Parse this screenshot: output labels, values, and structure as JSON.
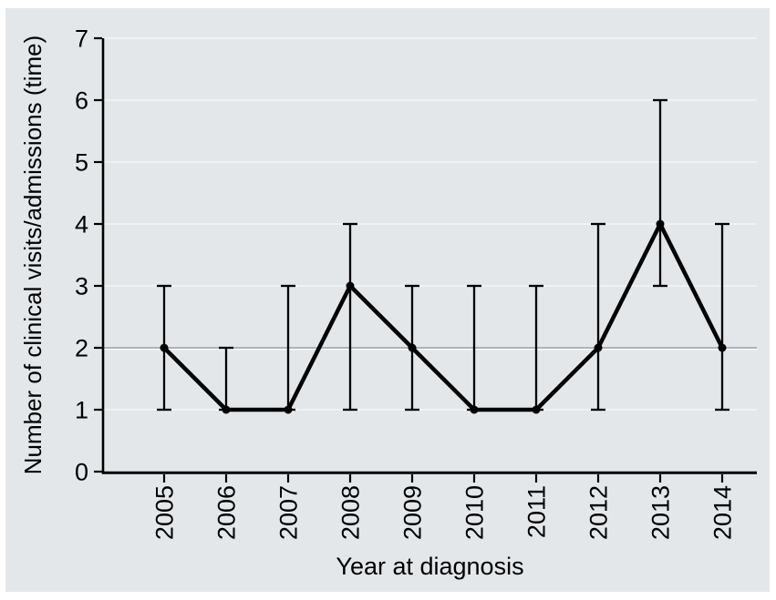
{
  "figure": {
    "description": "Line chart with error bars of clinical visits/admissions by year at diagnosis"
  },
  "chart_data": {
    "type": "line",
    "title": "",
    "xlabel": "Year at diagnosis",
    "ylabel": "Number of clinical visits/admissions (time)",
    "categories": [
      "2005",
      "2006",
      "2007",
      "2008",
      "2009",
      "2010",
      "2011",
      "2012",
      "2013",
      "2014"
    ],
    "series": [
      {
        "name": "Number of clinical visits/admissions",
        "values": [
          2,
          1,
          1,
          3,
          2,
          1,
          1,
          2,
          4,
          2
        ],
        "error_low": [
          1,
          1,
          1,
          1,
          1,
          1,
          1,
          1,
          3,
          1
        ],
        "error_high": [
          3,
          2,
          3,
          4,
          3,
          3,
          3,
          4,
          6,
          4
        ]
      }
    ],
    "ylim": [
      0,
      7
    ],
    "yticks": [
      0,
      1,
      2,
      3,
      4,
      5,
      6,
      7
    ],
    "grid": "horizontal",
    "emphasized_gridline": 2,
    "legend_position": "none",
    "colors": {
      "page_background": "#ffffff",
      "panel_background": "#e4e7ea",
      "gridline": "#f1f3f5",
      "gridline_emphasis": "#a6abb0",
      "gridline_emphasis_highlight": "#fafbfc",
      "axis": "#000000",
      "text": "#000000",
      "series_line": "#000000",
      "marker": "#000000"
    }
  }
}
